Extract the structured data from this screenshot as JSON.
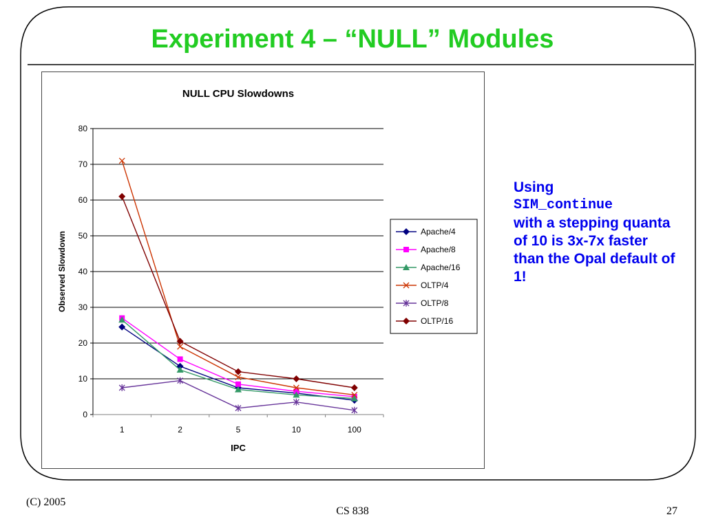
{
  "slide": {
    "title": "Experiment 4 – “NULL” Modules",
    "title_color": "#22cc22",
    "note_line1": "Using",
    "note_code": "SIM_continue",
    "note_rest": "with a stepping quanta of 10 is 3x-7x faster than the Opal default of 1!",
    "note_color": "#0000ee",
    "footer_left": "(C) 2005",
    "footer_center": "CS 838",
    "footer_right": "27"
  },
  "chart_data": {
    "type": "line",
    "title": "NULL CPU Slowdowns",
    "xlabel": "IPC",
    "ylabel": "Observed Slowdown",
    "categories": [
      "1",
      "2",
      "5",
      "10",
      "100"
    ],
    "ylim": [
      0,
      80
    ],
    "yticks": [
      "0",
      "10",
      "20",
      "30",
      "40",
      "50",
      "60",
      "70",
      "80"
    ],
    "grid": "horizontal",
    "legend_position": "right",
    "series": [
      {
        "name": "Apache/4",
        "values": [
          24.5,
          13.5,
          7.5,
          6.0,
          4.0
        ],
        "color": "#000080",
        "marker": "diamond"
      },
      {
        "name": "Apache/8",
        "values": [
          27.0,
          15.5,
          8.5,
          6.5,
          5.0
        ],
        "color": "#ff00ff",
        "marker": "square"
      },
      {
        "name": "Apache/16",
        "values": [
          26.5,
          12.5,
          7.0,
          5.5,
          4.5
        ],
        "color": "#339966",
        "marker": "triangle"
      },
      {
        "name": "OLTP/4",
        "values": [
          71.0,
          19.0,
          10.5,
          7.5,
          5.5
        ],
        "color": "#cc3300",
        "marker": "x"
      },
      {
        "name": "OLTP/8",
        "values": [
          7.5,
          9.5,
          1.8,
          3.5,
          1.2
        ],
        "color": "#663399",
        "marker": "star"
      },
      {
        "name": "OLTP/16",
        "values": [
          61.0,
          20.5,
          12.0,
          10.0,
          7.5
        ],
        "color": "#800000",
        "marker": "diamond"
      }
    ]
  }
}
